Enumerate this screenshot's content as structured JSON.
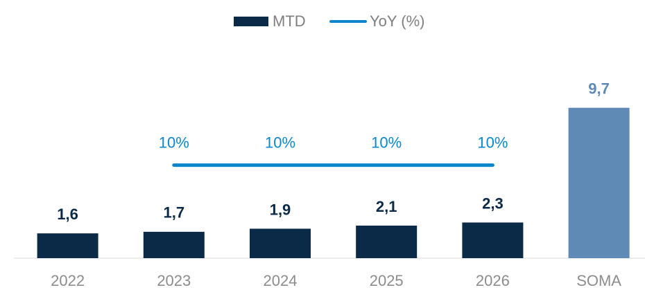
{
  "chart_data": {
    "type": "bar_line",
    "categories": [
      "2022",
      "2023",
      "2024",
      "2025",
      "2026",
      "SOMA"
    ],
    "series": [
      {
        "name": "MTD",
        "type": "bar",
        "color": "#0b2a48",
        "colors": [
          "#0b2a48",
          "#0b2a48",
          "#0b2a48",
          "#0b2a48",
          "#0b2a48",
          "#5f8ab5"
        ],
        "values": [
          1.6,
          1.7,
          1.9,
          2.1,
          2.3,
          9.7
        ],
        "value_labels": [
          "1,6",
          "1,7",
          "1,9",
          "2,1",
          "2,3",
          "9,7"
        ]
      },
      {
        "name": "YoY (%)",
        "type": "line",
        "axis": "y2",
        "color": "#0a86cc",
        "values": [
          null,
          10,
          10,
          10,
          10,
          null
        ],
        "value_labels": [
          null,
          "10%",
          "10%",
          "10%",
          "10%",
          null
        ]
      }
    ],
    "ylim": [
      0,
      15
    ],
    "y2lim": [
      0,
      25
    ],
    "legend": "top"
  }
}
